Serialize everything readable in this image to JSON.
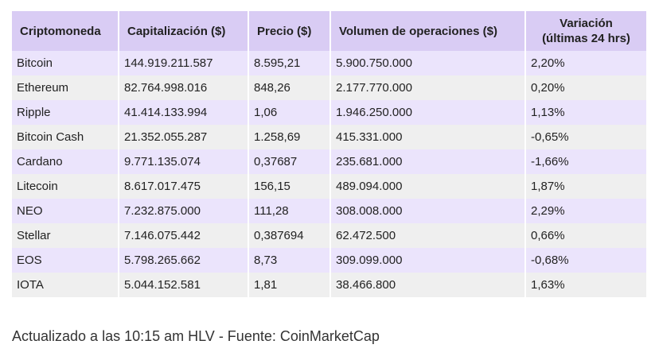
{
  "table": {
    "headers": [
      "Criptomoneda",
      "Capitalización ($)",
      "Precio ($)",
      "Volumen de operaciones ($)",
      "Variación",
      "(últimas 24 hrs)"
    ],
    "rows": [
      [
        "Bitcoin",
        "144.919.211.587",
        "8.595,21",
        "5.900.750.000",
        "2,20%"
      ],
      [
        "Ethereum",
        "82.764.998.016",
        "848,26",
        "2.177.770.000",
        "0,20%"
      ],
      [
        "Ripple",
        "41.414.133.994",
        "1,06",
        "1.946.250.000",
        "1,13%"
      ],
      [
        "Bitcoin Cash",
        "21.352.055.287",
        "1.258,69",
        "415.331.000",
        "-0,65%"
      ],
      [
        "Cardano",
        "9.771.135.074",
        "0,37687",
        "235.681.000",
        "-1,66%"
      ],
      [
        "Litecoin",
        "8.617.017.475",
        "156,15",
        "489.094.000",
        "1,87%"
      ],
      [
        "NEO",
        "7.232.875.000",
        "111,28",
        "308.008.000",
        "2,29%"
      ],
      [
        "Stellar",
        "7.146.075.442",
        "0,387694",
        "62.472.500",
        "0,66%"
      ],
      [
        "EOS",
        "5.798.265.662",
        "8,73",
        "309.099.000",
        "-0,68%"
      ],
      [
        "IOTA",
        "5.044.152.581",
        "1,81",
        "38.466.800",
        "1,63%"
      ]
    ]
  },
  "footer": {
    "text": "Actualizado a las 10:15 am HLV - Fuente: CoinMarketCap"
  },
  "colors": {
    "header_bg": "#d9ccf4",
    "row_odd_bg": "#ebe4fc",
    "row_even_bg": "#efefef"
  }
}
